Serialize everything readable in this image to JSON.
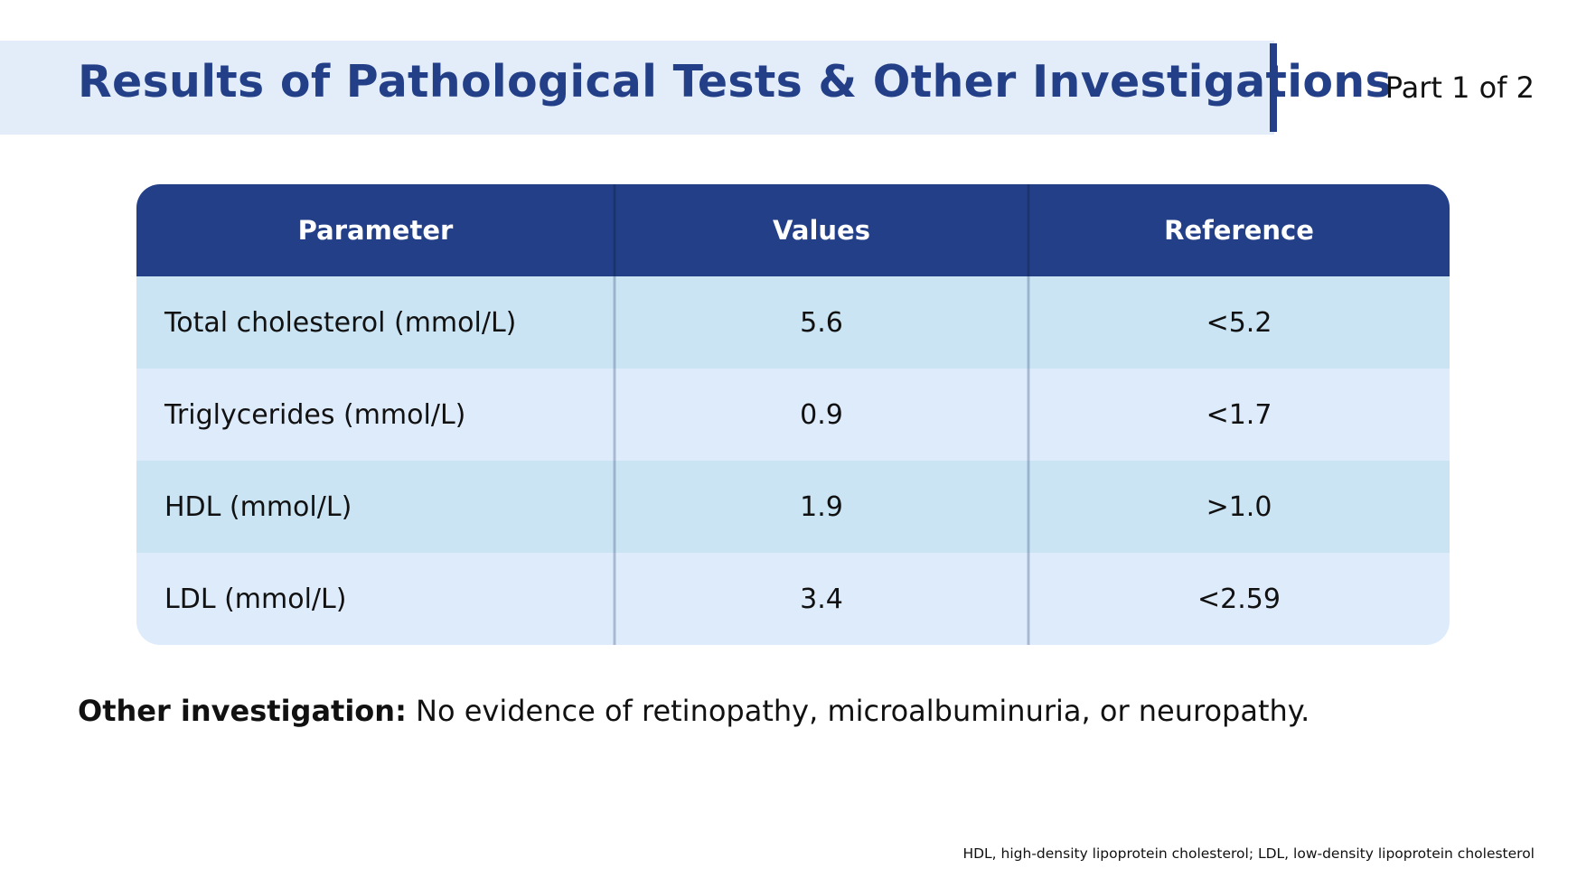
{
  "header": {
    "title": "Results of Pathological Tests & Other Investigations",
    "part": "Part 1 of 2"
  },
  "table": {
    "columns": [
      "Parameter",
      "Values",
      "Reference"
    ],
    "rows": [
      {
        "parameter": "Total cholesterol (mmol/L)",
        "value": "5.6",
        "reference": "<5.2"
      },
      {
        "parameter": "Triglycerides (mmol/L)",
        "value": "0.9",
        "reference": "<1.7"
      },
      {
        "parameter": "HDL (mmol/L)",
        "value": "1.9",
        "reference": ">1.0"
      },
      {
        "parameter": "LDL (mmol/L)",
        "value": "3.4",
        "reference": "<2.59"
      }
    ]
  },
  "other_investigation": {
    "label": "Other investigation:",
    "text": "No evidence of retinopathy, microalbuminuria, or neuropathy."
  },
  "footnote": "HDL, high-density lipoprotein cholesterol; LDL, low-density lipoprotein cholesterol",
  "colors": {
    "accent": "#233f87",
    "title_band": "#e3edfa",
    "row_odd": "#cae4f4",
    "row_even": "#deebfb"
  }
}
